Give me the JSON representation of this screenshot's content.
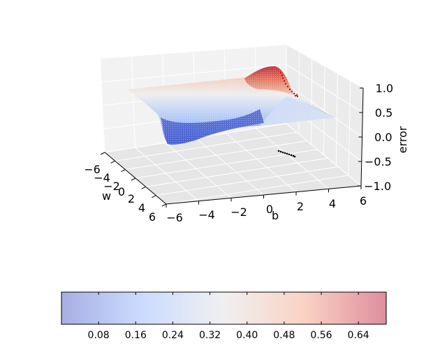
{
  "chart_data": [
    {
      "type": "surface3d",
      "title": "",
      "xlabel": "w",
      "ylabel": "b",
      "zlabel": "error",
      "xlim": [
        -6,
        6
      ],
      "ylim": [
        -6,
        6
      ],
      "zlim": [
        -1,
        1
      ],
      "x_tick_labels": [
        "−6",
        "−4",
        "−2",
        "0",
        "2",
        "4",
        "6"
      ],
      "y_tick_labels": [
        "−6",
        "−4",
        "−2",
        "0",
        "b",
        "2",
        "4",
        "6"
      ],
      "z_tick_labels": [
        "1.0",
        "0.5",
        "0.0",
        "−0.5",
        "−1.0"
      ],
      "grid": true,
      "colormap": "coolwarm",
      "surface_description": "error surface over (w, b): high (~0.7) plateau at positive b ridge, low (~0.0) trough at negative w",
      "surface_levels": {
        "min": 0.0,
        "max": 0.7
      },
      "descent_path_color": "#cc1111",
      "projected_path_color": "#000000"
    },
    {
      "type": "colorbar",
      "colormap": "coolwarm",
      "range": [
        0.0,
        0.7
      ],
      "ticks": [
        0.08,
        0.16,
        0.24,
        0.32,
        0.4,
        0.48,
        0.56,
        0.64
      ],
      "tick_labels": [
        "0.08",
        "0.16",
        "0.24",
        "0.32",
        "0.40",
        "0.48",
        "0.56",
        "0.64"
      ]
    }
  ],
  "labels": {
    "w": "w",
    "b": "b",
    "error": "error"
  }
}
